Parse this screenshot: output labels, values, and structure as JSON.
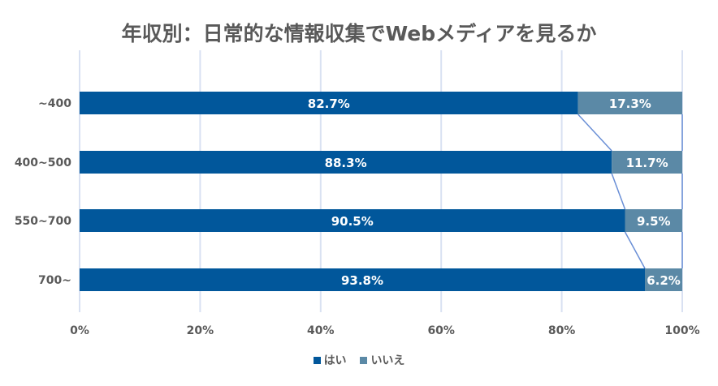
{
  "chart_data": {
    "type": "bar",
    "stacked": true,
    "orientation": "horizontal",
    "title": "年収別：日常的な情報収集でWebメディアを見るか",
    "categories": [
      "~400",
      "400~500",
      "550~700",
      "700~"
    ],
    "series": [
      {
        "name": "はい",
        "values": [
          82.7,
          88.3,
          90.5,
          93.8
        ],
        "labels": [
          "82.7%",
          "88.3%",
          "90.5%",
          "93.8%"
        ],
        "color": "#01579B"
      },
      {
        "name": "いいえ",
        "values": [
          17.3,
          11.7,
          9.5,
          6.2
        ],
        "labels": [
          "17.3%",
          "11.7%",
          "9.5%",
          "6.2%"
        ],
        "color": "#5B89A6"
      }
    ],
    "xticks": [
      "0%",
      "20%",
      "40%",
      "60%",
      "80%",
      "100%"
    ],
    "xlim": [
      0,
      100
    ],
    "grid": true,
    "legend_position": "bottom",
    "series_line_color": "#6A8FD6"
  }
}
